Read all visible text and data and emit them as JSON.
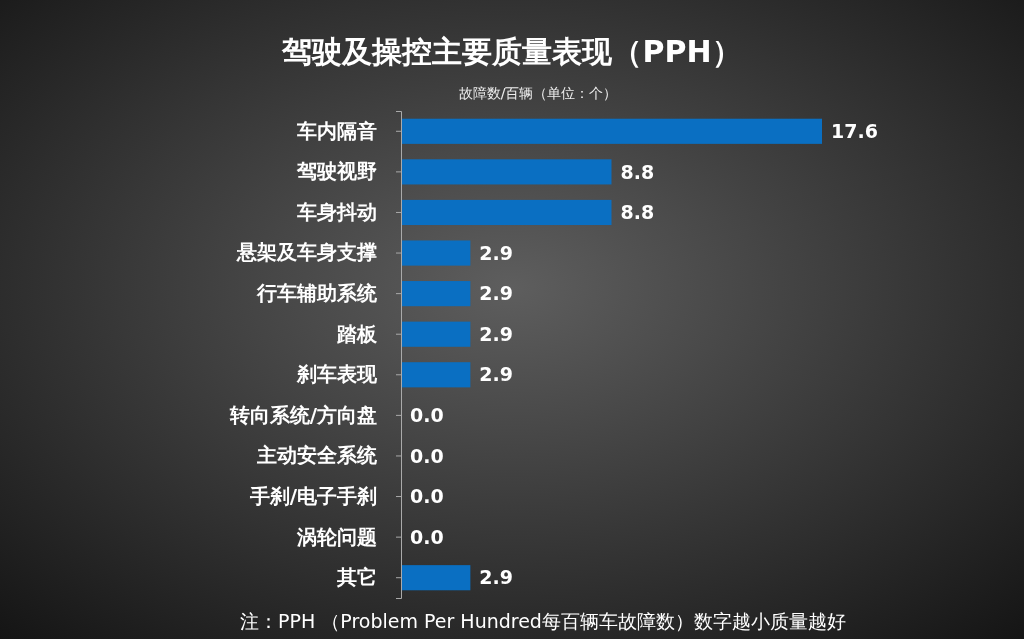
{
  "chart_data": {
    "type": "bar",
    "orientation": "horizontal",
    "title": "驾驶及操控主要质量表现（PPH）",
    "subtitle": "故障数/百辆（单位：个）",
    "categories": [
      "车内隔音",
      "驾驶视野",
      "车身抖动",
      "悬架及车身支撑",
      "行车辅助系统",
      "踏板",
      "刹车表现",
      "转向系统/方向盘",
      "主动安全系统",
      "手刹/电子手刹",
      "涡轮问题",
      "其它"
    ],
    "values": [
      17.6,
      8.8,
      8.8,
      2.9,
      2.9,
      2.9,
      2.9,
      0.0,
      0.0,
      0.0,
      0.0,
      2.9
    ],
    "value_labels": [
      "17.6",
      "8.8",
      "8.8",
      "2.9",
      "2.9",
      "2.9",
      "2.9",
      "0.0",
      "0.0",
      "0.0",
      "0.0",
      "2.9"
    ],
    "color": "#0a6fc2",
    "grid": false,
    "annotations": [
      "注：PPH （Problem Per Hundred每百辆车故障数）数字越小质量越好"
    ]
  }
}
